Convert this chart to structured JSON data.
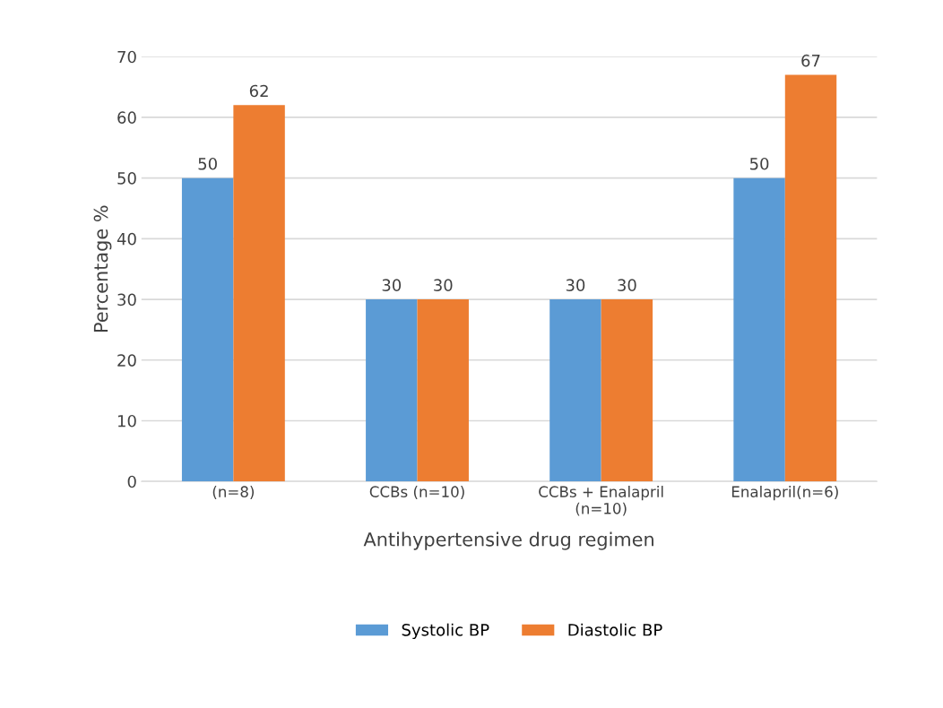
{
  "chart_data": {
    "type": "bar",
    "xlabel": "Antihypertensive drug regimen",
    "ylabel": "Percentage %",
    "categories": [
      "(n=8)",
      "CCBs (n=10)",
      "CCBs + Enalapril\n(n=10)",
      "Enalapril(n=6)"
    ],
    "series": [
      {
        "name": "Systolic BP",
        "color": "#5b9bd5",
        "values": [
          50,
          30,
          30,
          50
        ]
      },
      {
        "name": "Diastolic BP",
        "color": "#ed7d31",
        "values": [
          62,
          30,
          30,
          67
        ]
      }
    ],
    "ylim": [
      0,
      70
    ],
    "yticks": [
      0,
      10,
      20,
      30,
      40,
      50,
      60,
      70
    ],
    "grid": "y",
    "legend": "bottom",
    "data_labels": true
  }
}
